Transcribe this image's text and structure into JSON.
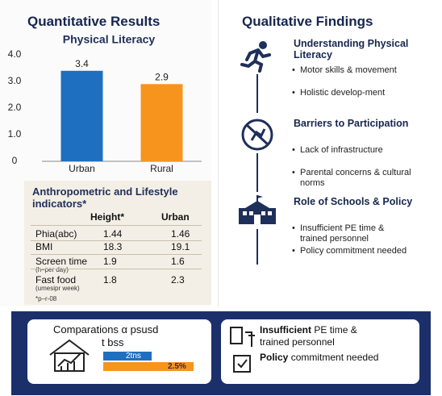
{
  "left_title": "Quantitative Results",
  "chart_data": {
    "type": "bar",
    "title": "Physical Literacy",
    "categories": [
      "Urban",
      "Rural"
    ],
    "values": [
      3.4,
      2.9
    ],
    "colors": [
      "#1f6fc0",
      "#f7941d"
    ],
    "ylim": [
      0,
      4
    ],
    "yticks": [
      0,
      {
        "value": 1,
        "label": "1.0"
      },
      {
        "value": 2,
        "label": "2.0"
      },
      {
        "value": 3,
        "label": "3.0"
      },
      {
        "value": 4,
        "label": "4.0"
      }
    ]
  },
  "table": {
    "title": "Anthropometric and Lifestyle indicators*",
    "columns": [
      "Height*",
      "Urban"
    ],
    "rows": [
      {
        "label": "Phia(abc)",
        "values": [
          "1.44",
          "1.46"
        ]
      },
      {
        "label": "BMI",
        "values": [
          "18.3",
          "19.1"
        ]
      },
      {
        "label": "Screen time",
        "note": "(h–per day)",
        "values": [
          "1.9",
          "1.6"
        ]
      },
      {
        "label": "Fast food",
        "note": "(umesipr week)",
        "values": [
          "1.8",
          "2.3"
        ]
      }
    ],
    "footnote": "*p–r-08"
  },
  "right_title": "Qualitative Findings",
  "findings": [
    {
      "title": "Understanding Physical Literacy",
      "bullets": [
        "Motor skills & movement",
        "Holistic develop-ment"
      ]
    },
    {
      "title": "Barriers to Participation",
      "bullets": [
        "Lack of infrastructure",
        "Parental concerns & cultural norms"
      ]
    },
    {
      "title": "Role of Schools & Policy",
      "bullets": [
        "Insufficient PE time & trained personnel",
        "Policy commitment needed"
      ]
    }
  ],
  "footer": {
    "comparison": {
      "title": "Comparations α psusd",
      "subtitle": "t bss",
      "bar_labels": [
        "2tns",
        "2.5%"
      ]
    },
    "items": [
      {
        "bold": "Insufficient",
        "text": "PE time & trained personnel"
      },
      {
        "bold": "Policy",
        "text": "commitment needed"
      }
    ]
  }
}
